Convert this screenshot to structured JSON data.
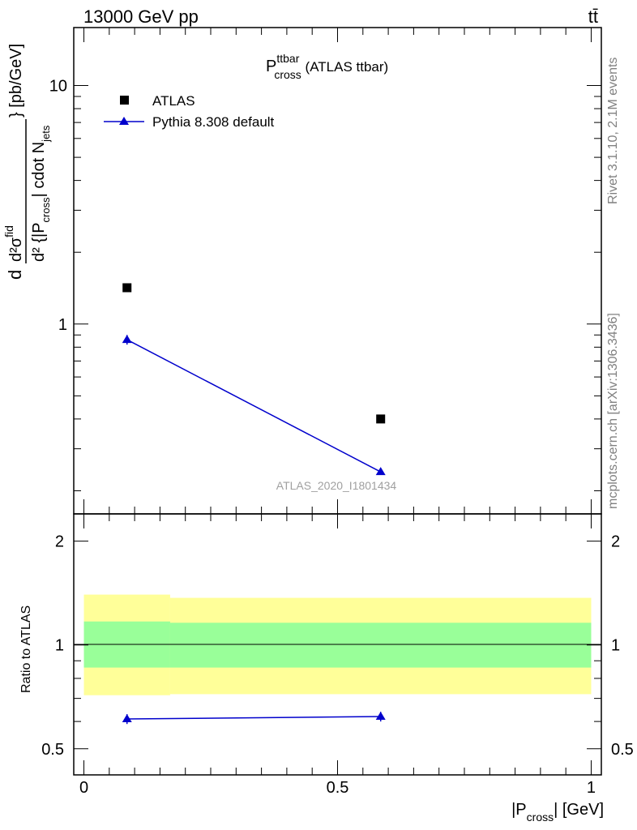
{
  "header": {
    "left": "13000 GeV pp",
    "right": "tt̄"
  },
  "side": {
    "rivet": "Rivet 3.1.10,  2.1M events",
    "mcplots": "mcplots.cern.ch [arXiv:1306.3436]"
  },
  "title": {
    "main": "P",
    "sup": "ttbar",
    "sub": "cross",
    "rest": " (ATLAS ttbar)"
  },
  "watermark": "ATLAS_2020_I1801434",
  "y_label": {
    "d": "d",
    "num": "d²σ",
    "num_sup": "fid",
    "den_a": "d² {|P",
    "den_sub": "cross",
    "den_b": "| cdot N",
    "den_sub2": "jets",
    "unit": "} [pb/GeV]"
  },
  "ratio_y_label": "Ratio to ATLAS",
  "x_label": {
    "a": "|P",
    "sub": "cross",
    "b": "| [GeV]"
  },
  "legend": [
    {
      "label": "ATLAS",
      "color": "#000000",
      "marker": "square"
    },
    {
      "label": "Pythia 8.308 default",
      "color": "#0000cc",
      "marker": "triangle"
    }
  ],
  "upper_y_ticks": [
    "1",
    "10"
  ],
  "ratio_y_ticks": [
    "0.5",
    "1",
    "2"
  ],
  "x_ticks": [
    "0",
    "0.5",
    "1"
  ],
  "chart_data": [
    {
      "type": "scatter",
      "panel": "main",
      "xlabel": "|P_cross| [GeV]",
      "ylabel": "d²σ^fid / d²{|P_cross| cdot N_jets} [pb/GeV]",
      "log_y": true,
      "xlim": [
        -0.02,
        1.02
      ],
      "ylim": [
        0.16,
        17.5
      ],
      "series": [
        {
          "name": "ATLAS",
          "color": "#000000",
          "marker": "square",
          "x": [
            0.085,
            0.585
          ],
          "y": [
            1.42,
            0.4
          ]
        },
        {
          "name": "Pythia 8.308 default",
          "color": "#0000cc",
          "marker": "triangle",
          "x": [
            0.085,
            0.585
          ],
          "y": [
            0.86,
            0.24
          ],
          "yerr": [
            0.04,
            0.006
          ]
        }
      ]
    },
    {
      "type": "line",
      "panel": "ratio",
      "ylabel": "Ratio to ATLAS",
      "log_y": true,
      "xlim": [
        -0.02,
        1.02
      ],
      "ylim": [
        0.42,
        2.4
      ],
      "reference": 1,
      "bands": [
        {
          "name": "total uncertainty",
          "color": "#ffff99",
          "bins": [
            [
              0,
              0.17,
              0.715,
              1.4
            ],
            [
              0.17,
              1,
              0.72,
              1.37
            ]
          ]
        },
        {
          "name": "statistical uncertainty",
          "color": "#99ff99",
          "bins": [
            [
              0,
              0.17,
              0.86,
              1.17
            ],
            [
              0.17,
              1,
              0.86,
              1.16
            ]
          ]
        }
      ],
      "series": [
        {
          "name": "Pythia 8.308 default",
          "color": "#0000cc",
          "marker": "triangle",
          "x": [
            0.085,
            0.585
          ],
          "y": [
            0.61,
            0.62
          ],
          "yerr": [
            0.02,
            0.02
          ]
        }
      ]
    }
  ]
}
